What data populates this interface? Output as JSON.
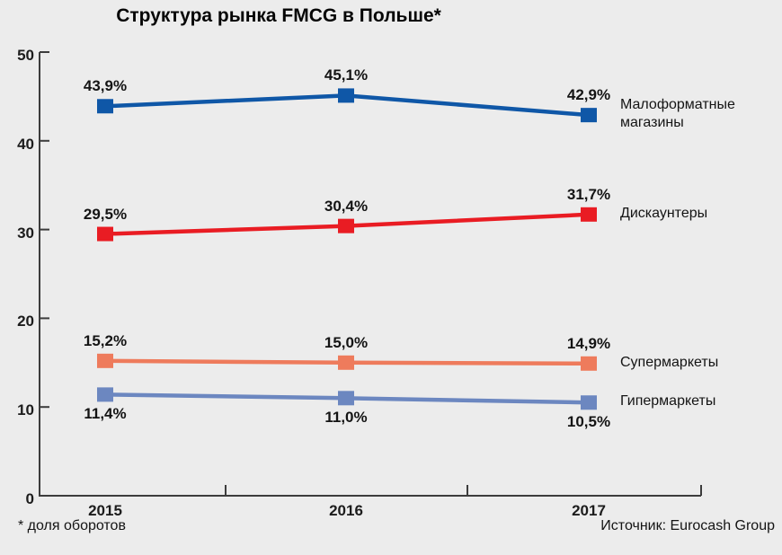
{
  "title": "Структура рынка FMCG в Польше*",
  "footnote": "* доля оборотов",
  "source": "Источник: Eurocash Group",
  "axis_color": "#3c3c3c",
  "chart_data": {
    "type": "line",
    "title": "Структура рынка FMCG в Польше*",
    "categories": [
      "2015",
      "2016",
      "2017"
    ],
    "series": [
      {
        "name": "Малоформатные магазины",
        "legend_lines": [
          "Малоформатные",
          "магазины"
        ],
        "values": [
          43.9,
          45.1,
          42.9
        ],
        "labels": [
          "43,9%",
          "45,1%",
          "42,9%"
        ],
        "color": "#0F57A7",
        "label_position": "above"
      },
      {
        "name": "Дискаунтеры",
        "legend_lines": [
          "Дискаунтеры"
        ],
        "values": [
          29.5,
          30.4,
          31.7
        ],
        "labels": [
          "29,5%",
          "30,4%",
          "31,7%"
        ],
        "color": "#E91C23",
        "label_position": "above"
      },
      {
        "name": "Супермаркеты",
        "legend_lines": [
          "Супермаркеты"
        ],
        "values": [
          15.2,
          15.0,
          14.9
        ],
        "labels": [
          "15,2%",
          "15,0%",
          "14,9%"
        ],
        "color": "#EE7B5C",
        "label_position": "above"
      },
      {
        "name": "Гипермаркеты",
        "legend_lines": [
          "Гипермаркеты"
        ],
        "values": [
          11.4,
          11.0,
          10.5
        ],
        "labels": [
          "11,4%",
          "11,0%",
          "10,5%"
        ],
        "color": "#6C87C0",
        "label_position": "below"
      }
    ],
    "ylim": [
      0,
      50
    ],
    "yticks": [
      0,
      10,
      20,
      30,
      40,
      50
    ],
    "grid": false,
    "legend_position": "right",
    "xlabel": "",
    "ylabel": ""
  }
}
